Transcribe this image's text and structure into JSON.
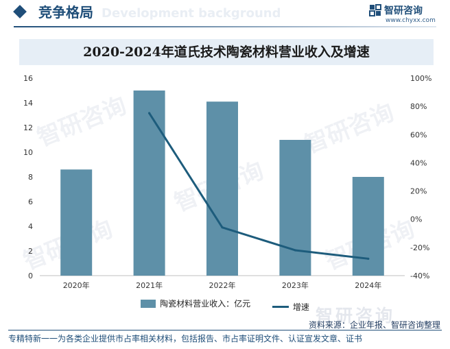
{
  "header": {
    "section_title": "竞争格局",
    "ghost_text": "Development background",
    "logo_name": "智研咨询",
    "logo_url": "www.chyxx.com"
  },
  "watermark_text": "智研咨询",
  "chart_data": {
    "type": "bar",
    "title": "2020-2024年道氏技术陶瓷材料营业收入及增速",
    "categories": [
      "2020年",
      "2021年",
      "2022年",
      "2023年",
      "2024年"
    ],
    "series": [
      {
        "name": "陶瓷材料营业收入：亿元",
        "type": "bar",
        "axis": "left",
        "values": [
          8.6,
          15.0,
          14.1,
          11.0,
          8.0
        ]
      },
      {
        "name": "增速",
        "type": "line",
        "axis": "right",
        "values": [
          null,
          75.2,
          -5.8,
          -22.0,
          -28.0
        ]
      }
    ],
    "y_left": {
      "min": 0,
      "max": 16,
      "ticks": [
        "0",
        "2",
        "4",
        "6",
        "8",
        "10",
        "12",
        "14",
        "16"
      ]
    },
    "y_right": {
      "min": -40,
      "max": 100,
      "ticks": [
        "-40%",
        "-20%",
        "0%",
        "20%",
        "40%",
        "60%",
        "80%",
        "100%"
      ]
    },
    "grid": false,
    "legend_position": "bottom",
    "colors": {
      "bar": "#5e90a8",
      "line": "#1d5c7c"
    }
  },
  "footer": {
    "logo_text": "智研咨询",
    "source": "资料来源：企业年报、智研咨询整理",
    "tagline": "专精特新一一为各类企业提供市占率相关材料，包括报告、市占率证明文件、认证宣发文章、证书"
  }
}
